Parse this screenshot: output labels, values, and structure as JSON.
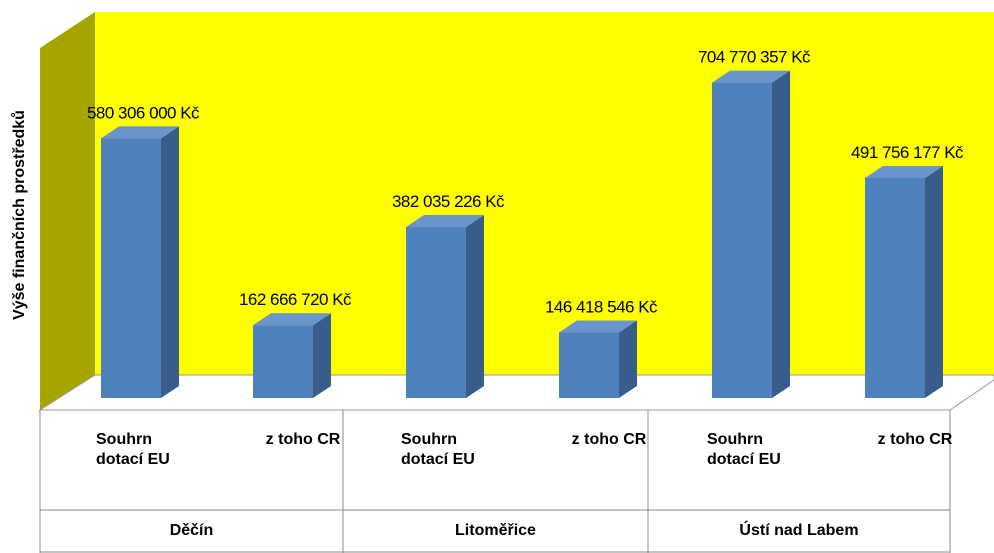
{
  "chart_data": {
    "type": "bar3d",
    "y_label": "Výše finančních prostředků",
    "groups": [
      "Děčín",
      "Litoměřice",
      "Ústí nad Labem"
    ],
    "categories": [
      "Souhrn dotací EU",
      "z toho CR",
      "Souhrn dotací EU",
      "z toho CR",
      "Souhrn dotací EU",
      "z toho CR"
    ],
    "values": [
      580306000,
      162666720,
      382035226,
      146418546,
      704770357,
      491756177
    ],
    "value_labels": [
      "580 306 000 Kč",
      "162 666 720 Kč",
      "382 035 226 Kč",
      "146 418 546 Kč",
      "704 770 357 Kč",
      "491 756 177 Kč"
    ],
    "color": "#4f81bd",
    "ylim": [
      0,
      800000000
    ]
  }
}
